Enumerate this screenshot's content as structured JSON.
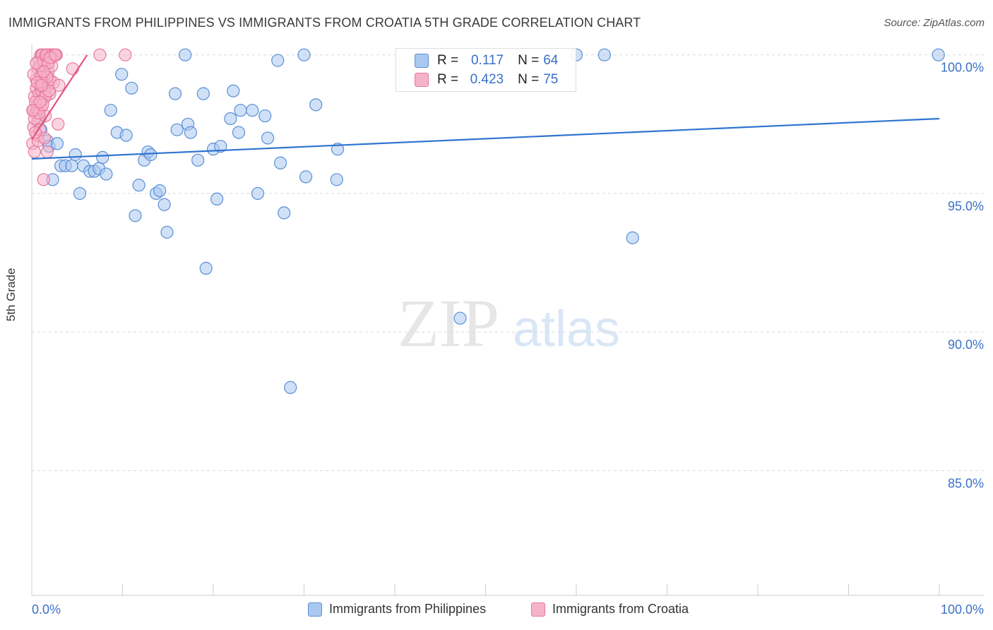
{
  "title": "IMMIGRANTS FROM PHILIPPINES VS IMMIGRANTS FROM CROATIA 5TH GRADE CORRELATION CHART",
  "source": "Source: ZipAtlas.com",
  "watermark": {
    "zip": "ZIP",
    "atlas": "atlas"
  },
  "colors": {
    "blue_fill": "#a9c8f0",
    "blue_stroke": "#5b8fd6",
    "blue_line": "#2f74d0",
    "pink_fill": "#f6b3c8",
    "pink_stroke": "#e8789c",
    "pink_line": "#e3547f",
    "value_text": "#3a70c8",
    "grid": "#d9d9d9"
  },
  "stats": [
    {
      "r_label": "R =",
      "r_value": "0.117",
      "n_label": "N =",
      "n_value": "64"
    },
    {
      "r_label": "R =",
      "r_value": "0.423",
      "n_label": "N =",
      "n_value": "75"
    }
  ],
  "chart_data": {
    "type": "scatter",
    "title": "IMMIGRANTS FROM PHILIPPINES VS IMMIGRANTS FROM CROATIA 5TH GRADE CORRELATION CHART",
    "xlabel": "",
    "ylabel": "5th Grade",
    "xlim": [
      0,
      100
    ],
    "ylim": [
      80.5,
      100.4
    ],
    "x_tick_labels": [
      "0.0%",
      "100.0%"
    ],
    "y_ticks": [
      100,
      95,
      90,
      85
    ],
    "y_tick_labels": [
      "100.0%",
      "95.0%",
      "90.0%",
      "85.0%"
    ],
    "legend": [
      "Immigrants from Philippines",
      "Immigrants from Croatia"
    ],
    "series": [
      {
        "name": "Immigrants from Philippines",
        "trend": [
          [
            0,
            96.25
          ],
          [
            100,
            97.7
          ]
        ],
        "points": [
          [
            0.9,
            97.7
          ],
          [
            1.0,
            97.3
          ],
          [
            1.7,
            96.9
          ],
          [
            1.9,
            96.7
          ],
          [
            2.3,
            95.5
          ],
          [
            2.8,
            96.8
          ],
          [
            3.2,
            96.0
          ],
          [
            3.7,
            96.0
          ],
          [
            4.4,
            96.0
          ],
          [
            4.8,
            96.4
          ],
          [
            5.3,
            95.0
          ],
          [
            5.7,
            96.0
          ],
          [
            6.4,
            95.8
          ],
          [
            6.9,
            95.8
          ],
          [
            7.4,
            95.9
          ],
          [
            7.8,
            96.3
          ],
          [
            8.2,
            95.7
          ],
          [
            8.7,
            98.0
          ],
          [
            9.4,
            97.2
          ],
          [
            9.9,
            99.3
          ],
          [
            10.4,
            97.1
          ],
          [
            11.0,
            98.8
          ],
          [
            11.4,
            94.2
          ],
          [
            11.8,
            95.3
          ],
          [
            12.4,
            96.2
          ],
          [
            12.8,
            96.5
          ],
          [
            13.1,
            96.4
          ],
          [
            13.7,
            95.0
          ],
          [
            14.1,
            95.1
          ],
          [
            14.6,
            94.6
          ],
          [
            14.9,
            93.6
          ],
          [
            15.8,
            98.6
          ],
          [
            16.0,
            97.3
          ],
          [
            16.9,
            100.0
          ],
          [
            17.2,
            97.5
          ],
          [
            17.5,
            97.2
          ],
          [
            18.3,
            96.2
          ],
          [
            18.9,
            98.6
          ],
          [
            19.2,
            92.3
          ],
          [
            20.0,
            96.6
          ],
          [
            20.4,
            94.8
          ],
          [
            20.8,
            96.7
          ],
          [
            21.9,
            97.7
          ],
          [
            22.2,
            98.7
          ],
          [
            22.8,
            97.2
          ],
          [
            23.0,
            98.0
          ],
          [
            24.3,
            98.0
          ],
          [
            24.9,
            95.0
          ],
          [
            25.7,
            97.8
          ],
          [
            26.0,
            97.0
          ],
          [
            27.1,
            99.8
          ],
          [
            27.4,
            96.1
          ],
          [
            27.8,
            94.3
          ],
          [
            28.5,
            88.0
          ],
          [
            30.0,
            100.0
          ],
          [
            30.2,
            95.6
          ],
          [
            31.3,
            98.2
          ],
          [
            33.6,
            95.5
          ],
          [
            33.7,
            96.6
          ],
          [
            47.2,
            90.5
          ],
          [
            60.0,
            100.0
          ],
          [
            63.1,
            100.0
          ],
          [
            66.2,
            93.4
          ],
          [
            99.9,
            100.0
          ]
        ]
      },
      {
        "name": "Immigrants from Croatia",
        "trend": [
          [
            0,
            96.95
          ],
          [
            6.1,
            100.0
          ]
        ],
        "points": [
          [
            0.1,
            96.8
          ],
          [
            0.2,
            97.4
          ],
          [
            0.2,
            98.0
          ],
          [
            0.3,
            98.5
          ],
          [
            0.3,
            96.5
          ],
          [
            0.4,
            97.9
          ],
          [
            0.5,
            99.1
          ],
          [
            0.5,
            98.8
          ],
          [
            0.6,
            97.1
          ],
          [
            0.6,
            98.2
          ],
          [
            0.7,
            99.5
          ],
          [
            0.7,
            97.6
          ],
          [
            0.8,
            98.6
          ],
          [
            0.8,
            99.8
          ],
          [
            0.9,
            98.9
          ],
          [
            0.9,
            97.3
          ],
          [
            1.0,
            100.0
          ],
          [
            1.0,
            98.1
          ],
          [
            1.1,
            99.3
          ],
          [
            1.1,
            98.7
          ],
          [
            1.2,
            100.0
          ],
          [
            1.2,
            99.0
          ],
          [
            1.3,
            98.4
          ],
          [
            1.3,
            95.5
          ],
          [
            1.4,
            99.6
          ],
          [
            1.4,
            98.8
          ],
          [
            1.5,
            100.0
          ],
          [
            1.5,
            97.8
          ],
          [
            1.6,
            99.2
          ],
          [
            1.6,
            98.6
          ],
          [
            1.7,
            100.0
          ],
          [
            1.7,
            96.5
          ],
          [
            1.8,
            99.4
          ],
          [
            1.8,
            98.9
          ],
          [
            1.9,
            100.0
          ],
          [
            2.0,
            99.1
          ],
          [
            2.0,
            98.6
          ],
          [
            2.1,
            100.0
          ],
          [
            2.2,
            99.6
          ],
          [
            2.3,
            100.0
          ],
          [
            2.4,
            99.0
          ],
          [
            2.5,
            100.0
          ],
          [
            2.7,
            100.0
          ],
          [
            2.9,
            97.5
          ],
          [
            3.0,
            98.9
          ],
          [
            4.5,
            99.5
          ],
          [
            7.5,
            100.0
          ],
          [
            10.3,
            100.0
          ],
          [
            0.2,
            99.3
          ],
          [
            0.4,
            98.3
          ],
          [
            0.6,
            98.0
          ],
          [
            0.9,
            99.6
          ],
          [
            1.1,
            100.0
          ],
          [
            1.3,
            99.8
          ],
          [
            1.5,
            98.5
          ],
          [
            1.7,
            99.2
          ],
          [
            1.9,
            98.7
          ],
          [
            2.2,
            99.9
          ],
          [
            0.3,
            97.7
          ],
          [
            0.7,
            96.9
          ],
          [
            0.5,
            99.7
          ],
          [
            0.8,
            97.9
          ],
          [
            1.0,
            99.2
          ],
          [
            1.2,
            98.2
          ],
          [
            1.4,
            97.0
          ],
          [
            1.6,
            100.0
          ],
          [
            1.8,
            99.7
          ],
          [
            2.0,
            99.9
          ],
          [
            2.6,
            100.0
          ],
          [
            0.1,
            98.0
          ],
          [
            0.4,
            97.2
          ],
          [
            0.6,
            99.0
          ],
          [
            0.9,
            98.3
          ],
          [
            1.1,
            98.9
          ],
          [
            1.3,
            99.4
          ]
        ]
      }
    ]
  }
}
